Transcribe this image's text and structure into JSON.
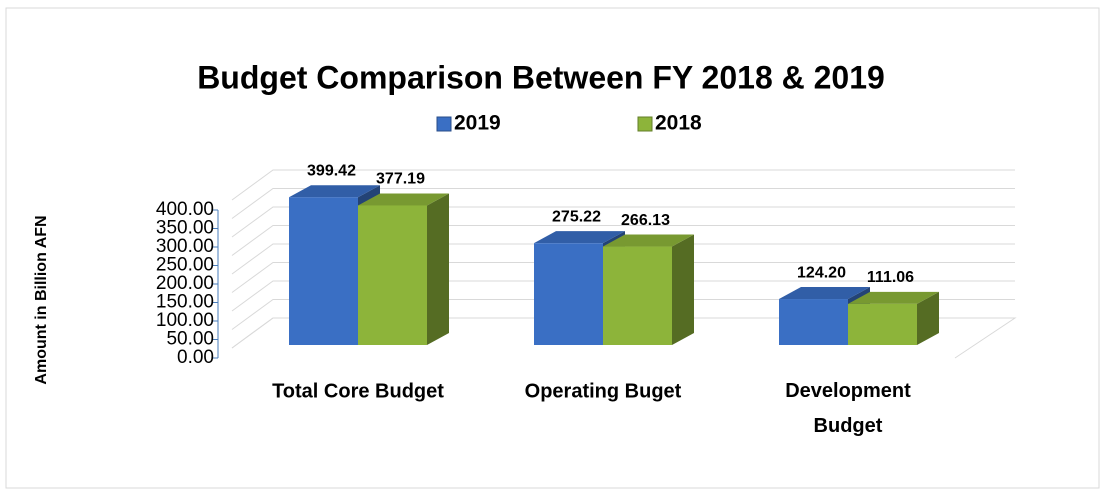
{
  "chart_data": {
    "type": "bar3d",
    "title": "Budget Comparison Between FY 2018 & 2019",
    "y_label": "Amount in Billion AFN",
    "categories": [
      "Total Core Budget",
      "Operating Buget",
      "Development Budget"
    ],
    "series": [
      {
        "name": "2019",
        "color": "#3a6fc4",
        "values": [
          399.42,
          275.22,
          124.2
        ],
        "value_labels": [
          "399.42",
          "275.22",
          "124.20"
        ]
      },
      {
        "name": "2018",
        "color": "#8db43a",
        "values": [
          377.19,
          266.13,
          111.06
        ],
        "value_labels": [
          "377.19",
          "266.13",
          "111.06"
        ]
      }
    ],
    "ylim": [
      0,
      400
    ],
    "yticks": [
      {
        "value": 0,
        "label": "0.00"
      },
      {
        "value": 50,
        "label": "50.00"
      },
      {
        "value": 100,
        "label": "100.00"
      },
      {
        "value": 150,
        "label": "150.00"
      },
      {
        "value": 200,
        "label": "200.00"
      },
      {
        "value": 250,
        "label": "250.00"
      },
      {
        "value": 300,
        "label": "300.00"
      },
      {
        "value": 350,
        "label": "350.00"
      },
      {
        "value": 400,
        "label": "400.00"
      }
    ],
    "grid": true,
    "legend": "top"
  }
}
